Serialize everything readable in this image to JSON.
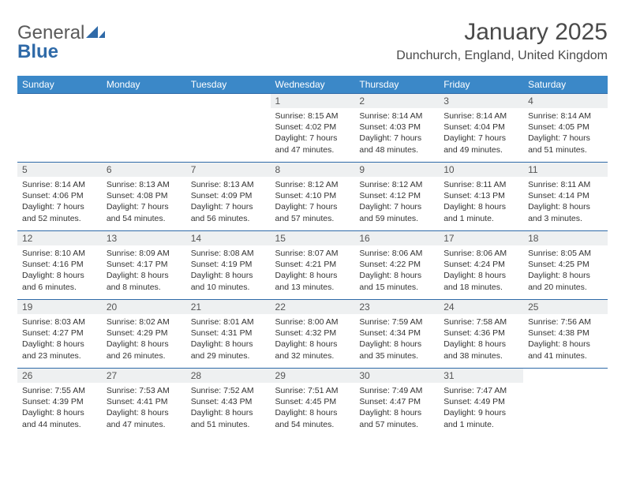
{
  "logo": {
    "text_a": "General",
    "text_b": "Blue",
    "brand_color": "#2f6aa8",
    "text_color": "#5a5a5a"
  },
  "title": "January 2025",
  "location": "Dunchurch, England, United Kingdom",
  "colors": {
    "header_bg": "#3b88c8",
    "header_text": "#ffffff",
    "daynum_bg": "#eef0f1",
    "daynum_text": "#555555",
    "rule": "#2f6aa8",
    "body_text": "#333333",
    "page_bg": "#ffffff"
  },
  "weekdays": [
    "Sunday",
    "Monday",
    "Tuesday",
    "Wednesday",
    "Thursday",
    "Friday",
    "Saturday"
  ],
  "weeks": [
    [
      {
        "day": "",
        "lines": []
      },
      {
        "day": "",
        "lines": []
      },
      {
        "day": "",
        "lines": []
      },
      {
        "day": "1",
        "lines": [
          "Sunrise: 8:15 AM",
          "Sunset: 4:02 PM",
          "Daylight: 7 hours",
          "and 47 minutes."
        ]
      },
      {
        "day": "2",
        "lines": [
          "Sunrise: 8:14 AM",
          "Sunset: 4:03 PM",
          "Daylight: 7 hours",
          "and 48 minutes."
        ]
      },
      {
        "day": "3",
        "lines": [
          "Sunrise: 8:14 AM",
          "Sunset: 4:04 PM",
          "Daylight: 7 hours",
          "and 49 minutes."
        ]
      },
      {
        "day": "4",
        "lines": [
          "Sunrise: 8:14 AM",
          "Sunset: 4:05 PM",
          "Daylight: 7 hours",
          "and 51 minutes."
        ]
      }
    ],
    [
      {
        "day": "5",
        "lines": [
          "Sunrise: 8:14 AM",
          "Sunset: 4:06 PM",
          "Daylight: 7 hours",
          "and 52 minutes."
        ]
      },
      {
        "day": "6",
        "lines": [
          "Sunrise: 8:13 AM",
          "Sunset: 4:08 PM",
          "Daylight: 7 hours",
          "and 54 minutes."
        ]
      },
      {
        "day": "7",
        "lines": [
          "Sunrise: 8:13 AM",
          "Sunset: 4:09 PM",
          "Daylight: 7 hours",
          "and 56 minutes."
        ]
      },
      {
        "day": "8",
        "lines": [
          "Sunrise: 8:12 AM",
          "Sunset: 4:10 PM",
          "Daylight: 7 hours",
          "and 57 minutes."
        ]
      },
      {
        "day": "9",
        "lines": [
          "Sunrise: 8:12 AM",
          "Sunset: 4:12 PM",
          "Daylight: 7 hours",
          "and 59 minutes."
        ]
      },
      {
        "day": "10",
        "lines": [
          "Sunrise: 8:11 AM",
          "Sunset: 4:13 PM",
          "Daylight: 8 hours",
          "and 1 minute."
        ]
      },
      {
        "day": "11",
        "lines": [
          "Sunrise: 8:11 AM",
          "Sunset: 4:14 PM",
          "Daylight: 8 hours",
          "and 3 minutes."
        ]
      }
    ],
    [
      {
        "day": "12",
        "lines": [
          "Sunrise: 8:10 AM",
          "Sunset: 4:16 PM",
          "Daylight: 8 hours",
          "and 6 minutes."
        ]
      },
      {
        "day": "13",
        "lines": [
          "Sunrise: 8:09 AM",
          "Sunset: 4:17 PM",
          "Daylight: 8 hours",
          "and 8 minutes."
        ]
      },
      {
        "day": "14",
        "lines": [
          "Sunrise: 8:08 AM",
          "Sunset: 4:19 PM",
          "Daylight: 8 hours",
          "and 10 minutes."
        ]
      },
      {
        "day": "15",
        "lines": [
          "Sunrise: 8:07 AM",
          "Sunset: 4:21 PM",
          "Daylight: 8 hours",
          "and 13 minutes."
        ]
      },
      {
        "day": "16",
        "lines": [
          "Sunrise: 8:06 AM",
          "Sunset: 4:22 PM",
          "Daylight: 8 hours",
          "and 15 minutes."
        ]
      },
      {
        "day": "17",
        "lines": [
          "Sunrise: 8:06 AM",
          "Sunset: 4:24 PM",
          "Daylight: 8 hours",
          "and 18 minutes."
        ]
      },
      {
        "day": "18",
        "lines": [
          "Sunrise: 8:05 AM",
          "Sunset: 4:25 PM",
          "Daylight: 8 hours",
          "and 20 minutes."
        ]
      }
    ],
    [
      {
        "day": "19",
        "lines": [
          "Sunrise: 8:03 AM",
          "Sunset: 4:27 PM",
          "Daylight: 8 hours",
          "and 23 minutes."
        ]
      },
      {
        "day": "20",
        "lines": [
          "Sunrise: 8:02 AM",
          "Sunset: 4:29 PM",
          "Daylight: 8 hours",
          "and 26 minutes."
        ]
      },
      {
        "day": "21",
        "lines": [
          "Sunrise: 8:01 AM",
          "Sunset: 4:31 PM",
          "Daylight: 8 hours",
          "and 29 minutes."
        ]
      },
      {
        "day": "22",
        "lines": [
          "Sunrise: 8:00 AM",
          "Sunset: 4:32 PM",
          "Daylight: 8 hours",
          "and 32 minutes."
        ]
      },
      {
        "day": "23",
        "lines": [
          "Sunrise: 7:59 AM",
          "Sunset: 4:34 PM",
          "Daylight: 8 hours",
          "and 35 minutes."
        ]
      },
      {
        "day": "24",
        "lines": [
          "Sunrise: 7:58 AM",
          "Sunset: 4:36 PM",
          "Daylight: 8 hours",
          "and 38 minutes."
        ]
      },
      {
        "day": "25",
        "lines": [
          "Sunrise: 7:56 AM",
          "Sunset: 4:38 PM",
          "Daylight: 8 hours",
          "and 41 minutes."
        ]
      }
    ],
    [
      {
        "day": "26",
        "lines": [
          "Sunrise: 7:55 AM",
          "Sunset: 4:39 PM",
          "Daylight: 8 hours",
          "and 44 minutes."
        ]
      },
      {
        "day": "27",
        "lines": [
          "Sunrise: 7:53 AM",
          "Sunset: 4:41 PM",
          "Daylight: 8 hours",
          "and 47 minutes."
        ]
      },
      {
        "day": "28",
        "lines": [
          "Sunrise: 7:52 AM",
          "Sunset: 4:43 PM",
          "Daylight: 8 hours",
          "and 51 minutes."
        ]
      },
      {
        "day": "29",
        "lines": [
          "Sunrise: 7:51 AM",
          "Sunset: 4:45 PM",
          "Daylight: 8 hours",
          "and 54 minutes."
        ]
      },
      {
        "day": "30",
        "lines": [
          "Sunrise: 7:49 AM",
          "Sunset: 4:47 PM",
          "Daylight: 8 hours",
          "and 57 minutes."
        ]
      },
      {
        "day": "31",
        "lines": [
          "Sunrise: 7:47 AM",
          "Sunset: 4:49 PM",
          "Daylight: 9 hours",
          "and 1 minute."
        ]
      },
      {
        "day": "",
        "lines": []
      }
    ]
  ]
}
